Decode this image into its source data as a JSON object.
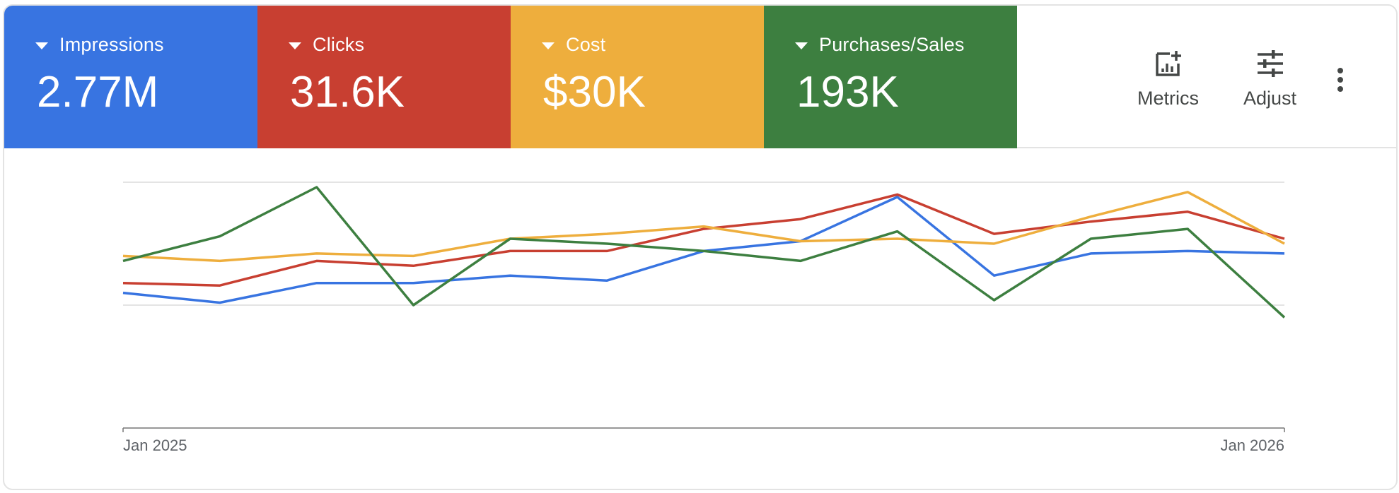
{
  "tiles": [
    {
      "label": "Impressions",
      "value": "2.77M",
      "color": "#3874E1"
    },
    {
      "label": "Clicks",
      "value": "31.6K",
      "color": "#C83F31"
    },
    {
      "label": "Cost",
      "value": "$30K",
      "color": "#EEAE3D"
    },
    {
      "label": "Purchases/Sales",
      "value": "193K",
      "color": "#3D7F40"
    }
  ],
  "toolbar": {
    "metrics_label": "Metrics",
    "adjust_label": "Adjust",
    "metrics_icon": "add-chart-icon",
    "adjust_icon": "tune-icon",
    "more_icon": "more-vert-icon"
  },
  "chart_data": {
    "type": "line",
    "x_tick_labels": [
      "Jan 2025",
      "Jan 2026"
    ],
    "x": [
      1,
      2,
      3,
      4,
      5,
      6,
      7,
      8,
      9,
      10,
      11,
      12,
      13
    ],
    "ylim": [
      0,
      100
    ],
    "grid": true,
    "series": [
      {
        "color": "#3874E1",
        "values": [
          55,
          51,
          59,
          59,
          62,
          60,
          72,
          76,
          94,
          62,
          71,
          72,
          71
        ]
      },
      {
        "color": "#C83F31",
        "values": [
          59,
          58,
          68,
          66,
          72,
          72,
          81,
          85,
          95,
          79,
          84,
          88,
          77
        ]
      },
      {
        "color": "#EEAE3D",
        "values": [
          70,
          68,
          71,
          70,
          77,
          79,
          82,
          76,
          77,
          75,
          86,
          96,
          75
        ]
      },
      {
        "color": "#3D7F40",
        "values": [
          68,
          78,
          98,
          50,
          77,
          75,
          72,
          68,
          80,
          52,
          77,
          81,
          45
        ]
      }
    ]
  }
}
